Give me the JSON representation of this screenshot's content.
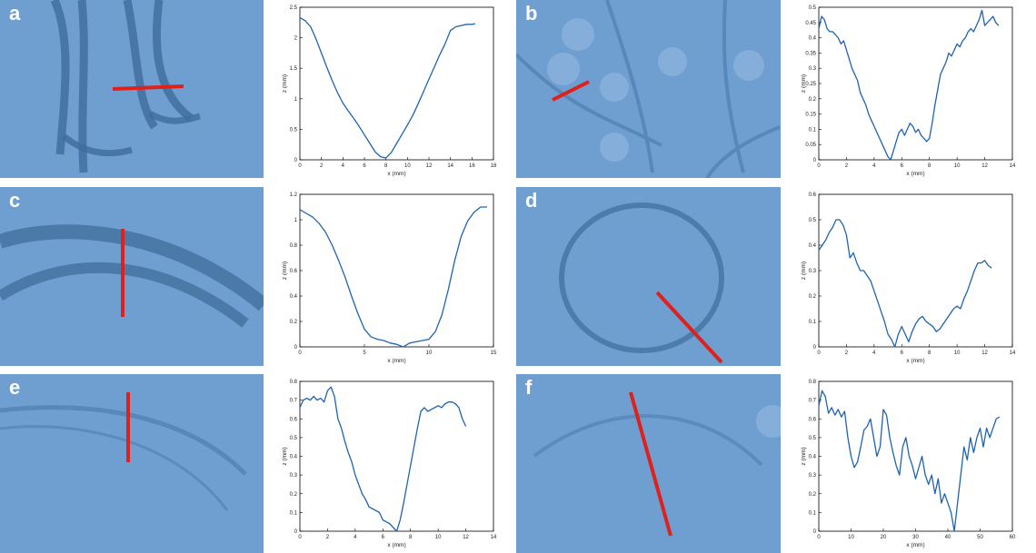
{
  "figure": {
    "panels": [
      {
        "letter": "a",
        "scan_color": "#6f9fd0"
      },
      {
        "letter": "b",
        "scan_color": "#6f9fd0"
      },
      {
        "letter": "c",
        "scan_color": "#6f9fd0"
      },
      {
        "letter": "d",
        "scan_color": "#6f9fd0"
      },
      {
        "letter": "e",
        "scan_color": "#6f9fd0"
      },
      {
        "letter": "f",
        "scan_color": "#6f9fd0"
      }
    ],
    "section_line_color": "#e0201b",
    "profile_line_color": "#1f63b0"
  },
  "chart_data": [
    {
      "type": "line",
      "panel": "a",
      "xlabel": "x (mm)",
      "ylabel": "z (mm)",
      "xlim": [
        0,
        18
      ],
      "ylim": [
        0,
        2.5
      ],
      "xticks": [
        0,
        2,
        4,
        6,
        8,
        10,
        12,
        14,
        16,
        18
      ],
      "yticks": [
        0,
        0.5,
        1,
        1.5,
        2,
        2.5
      ],
      "x": [
        0,
        0.5,
        1,
        1.5,
        2,
        2.5,
        3,
        3.5,
        4,
        4.5,
        5,
        5.5,
        6,
        6.5,
        7,
        7.5,
        8,
        8.5,
        9,
        9.5,
        10,
        10.5,
        11,
        11.5,
        12,
        12.5,
        13,
        13.5,
        14,
        14.5,
        15,
        15.5,
        16,
        16.3
      ],
      "y": [
        2.33,
        2.28,
        2.18,
        1.98,
        1.75,
        1.52,
        1.3,
        1.1,
        0.93,
        0.8,
        0.68,
        0.55,
        0.41,
        0.27,
        0.13,
        0.05,
        0.03,
        0.12,
        0.27,
        0.42,
        0.57,
        0.73,
        0.92,
        1.12,
        1.32,
        1.52,
        1.72,
        1.9,
        2.12,
        2.18,
        2.2,
        2.22,
        2.22,
        2.23
      ]
    },
    {
      "type": "line",
      "panel": "b",
      "xlabel": "x (mm)",
      "ylabel": "z (mm)",
      "xlim": [
        0,
        14
      ],
      "ylim": [
        0,
        0.5
      ],
      "xticks": [
        0,
        2,
        4,
        6,
        8,
        10,
        12,
        14
      ],
      "yticks": [
        0,
        0.05,
        0.1,
        0.15,
        0.2,
        0.25,
        0.3,
        0.35,
        0.4,
        0.45,
        0.5
      ],
      "x": [
        0,
        0.2,
        0.4,
        0.6,
        0.8,
        1.0,
        1.2,
        1.4,
        1.6,
        1.8,
        2.0,
        2.2,
        2.4,
        2.6,
        2.8,
        3.0,
        3.2,
        3.4,
        3.6,
        3.8,
        4.0,
        4.2,
        4.4,
        4.6,
        4.8,
        5.0,
        5.2,
        5.4,
        5.6,
        5.8,
        6.0,
        6.2,
        6.4,
        6.6,
        6.8,
        7.0,
        7.2,
        7.4,
        7.6,
        7.8,
        8.0,
        8.2,
        8.4,
        8.6,
        8.8,
        9.0,
        9.2,
        9.4,
        9.6,
        9.8,
        10.0,
        10.2,
        10.4,
        10.6,
        10.8,
        11.0,
        11.2,
        11.4,
        11.6,
        11.8,
        12.0,
        12.2,
        12.4,
        12.6,
        12.8,
        13.0
      ],
      "y": [
        0.43,
        0.47,
        0.46,
        0.43,
        0.42,
        0.42,
        0.41,
        0.4,
        0.38,
        0.39,
        0.36,
        0.33,
        0.3,
        0.28,
        0.26,
        0.22,
        0.2,
        0.18,
        0.15,
        0.13,
        0.11,
        0.09,
        0.07,
        0.05,
        0.03,
        0.01,
        0.0,
        0.03,
        0.06,
        0.09,
        0.1,
        0.08,
        0.1,
        0.12,
        0.11,
        0.09,
        0.1,
        0.08,
        0.07,
        0.06,
        0.07,
        0.12,
        0.18,
        0.23,
        0.28,
        0.3,
        0.32,
        0.35,
        0.34,
        0.36,
        0.38,
        0.37,
        0.39,
        0.4,
        0.42,
        0.43,
        0.42,
        0.44,
        0.46,
        0.49,
        0.44,
        0.45,
        0.46,
        0.47,
        0.45,
        0.44
      ]
    },
    {
      "type": "line",
      "panel": "c",
      "xlabel": "x (mm)",
      "ylabel": "z (mm)",
      "xlim": [
        0,
        15
      ],
      "ylim": [
        0,
        1.2
      ],
      "xticks": [
        0,
        5,
        10,
        15
      ],
      "yticks": [
        0,
        0.2,
        0.4,
        0.6,
        0.8,
        1,
        1.2
      ],
      "x": [
        0,
        0.5,
        1,
        1.5,
        2,
        2.5,
        3,
        3.5,
        4,
        4.5,
        5,
        5.5,
        6,
        6.5,
        7,
        7.5,
        8,
        8.5,
        9,
        9.5,
        10,
        10.5,
        11,
        11.5,
        12,
        12.5,
        13,
        13.5,
        14,
        14.5
      ],
      "y": [
        1.08,
        1.05,
        1.02,
        0.97,
        0.9,
        0.8,
        0.68,
        0.55,
        0.4,
        0.26,
        0.14,
        0.08,
        0.06,
        0.05,
        0.03,
        0.02,
        0.0,
        0.03,
        0.04,
        0.05,
        0.06,
        0.12,
        0.25,
        0.45,
        0.68,
        0.87,
        0.99,
        1.06,
        1.1,
        1.1
      ]
    },
    {
      "type": "line",
      "panel": "d",
      "xlabel": "x (mm)",
      "ylabel": "z (mm)",
      "xlim": [
        0,
        14
      ],
      "ylim": [
        0,
        0.6
      ],
      "xticks": [
        0,
        2,
        4,
        6,
        8,
        10,
        12,
        14
      ],
      "yticks": [
        0,
        0.1,
        0.2,
        0.3,
        0.4,
        0.5,
        0.6
      ],
      "x": [
        0,
        0.25,
        0.5,
        0.75,
        1.0,
        1.25,
        1.5,
        1.75,
        2.0,
        2.25,
        2.5,
        2.75,
        3.0,
        3.25,
        3.5,
        3.75,
        4.0,
        4.25,
        4.5,
        4.75,
        5.0,
        5.25,
        5.5,
        5.75,
        6.0,
        6.25,
        6.5,
        6.75,
        7.0,
        7.25,
        7.5,
        7.75,
        8.0,
        8.25,
        8.5,
        8.75,
        9.0,
        9.25,
        9.5,
        9.75,
        10.0,
        10.25,
        10.5,
        10.75,
        11.0,
        11.25,
        11.5,
        11.75,
        12.0,
        12.25,
        12.5
      ],
      "y": [
        0.38,
        0.4,
        0.42,
        0.45,
        0.47,
        0.5,
        0.5,
        0.48,
        0.44,
        0.35,
        0.37,
        0.33,
        0.3,
        0.3,
        0.28,
        0.26,
        0.22,
        0.18,
        0.14,
        0.1,
        0.05,
        0.03,
        0.0,
        0.05,
        0.08,
        0.05,
        0.02,
        0.06,
        0.09,
        0.11,
        0.12,
        0.1,
        0.09,
        0.08,
        0.06,
        0.07,
        0.09,
        0.11,
        0.13,
        0.15,
        0.16,
        0.15,
        0.19,
        0.22,
        0.26,
        0.3,
        0.33,
        0.33,
        0.34,
        0.32,
        0.31
      ]
    },
    {
      "type": "line",
      "panel": "e",
      "xlabel": "x (mm)",
      "ylabel": "z (mm)",
      "xlim": [
        0,
        14
      ],
      "ylim": [
        0,
        0.8
      ],
      "xticks": [
        0,
        2,
        4,
        6,
        8,
        10,
        12,
        14
      ],
      "yticks": [
        0,
        0.1,
        0.2,
        0.3,
        0.4,
        0.5,
        0.6,
        0.7,
        0.8
      ],
      "x": [
        0,
        0.25,
        0.5,
        0.75,
        1.0,
        1.25,
        1.5,
        1.75,
        2.0,
        2.25,
        2.5,
        2.75,
        3.0,
        3.25,
        3.5,
        3.75,
        4.0,
        4.25,
        4.5,
        4.75,
        5.0,
        5.25,
        5.5,
        5.75,
        6.0,
        6.25,
        6.5,
        6.75,
        7.0,
        7.25,
        7.5,
        7.75,
        8.0,
        8.25,
        8.5,
        8.75,
        9.0,
        9.25,
        9.5,
        9.75,
        10.0,
        10.25,
        10.5,
        10.75,
        11.0,
        11.25,
        11.5,
        11.75,
        12.0
      ],
      "y": [
        0.66,
        0.7,
        0.71,
        0.7,
        0.72,
        0.7,
        0.71,
        0.69,
        0.75,
        0.77,
        0.72,
        0.6,
        0.55,
        0.48,
        0.42,
        0.37,
        0.3,
        0.25,
        0.2,
        0.17,
        0.13,
        0.12,
        0.11,
        0.1,
        0.06,
        0.05,
        0.04,
        0.02,
        0.0,
        0.06,
        0.15,
        0.25,
        0.35,
        0.45,
        0.55,
        0.64,
        0.66,
        0.64,
        0.65,
        0.66,
        0.67,
        0.66,
        0.68,
        0.69,
        0.69,
        0.68,
        0.66,
        0.6,
        0.56
      ]
    },
    {
      "type": "line",
      "panel": "f",
      "xlabel": "x (mm)",
      "ylabel": "z (mm)",
      "xlim": [
        0,
        60
      ],
      "ylim": [
        0,
        0.8
      ],
      "xticks": [
        0,
        10,
        20,
        30,
        40,
        50,
        60
      ],
      "yticks": [
        0,
        0.1,
        0.2,
        0.3,
        0.4,
        0.5,
        0.6,
        0.7,
        0.8
      ],
      "x": [
        0,
        1,
        2,
        3,
        4,
        5,
        6,
        7,
        8,
        9,
        10,
        11,
        12,
        13,
        14,
        15,
        16,
        17,
        18,
        19,
        20,
        21,
        22,
        23,
        24,
        25,
        26,
        27,
        28,
        29,
        30,
        31,
        32,
        33,
        34,
        35,
        36,
        37,
        38,
        39,
        40,
        41,
        42,
        43,
        44,
        45,
        46,
        47,
        48,
        49,
        50,
        51,
        52,
        53,
        54,
        55,
        56
      ],
      "y": [
        0.67,
        0.75,
        0.72,
        0.63,
        0.66,
        0.62,
        0.65,
        0.61,
        0.64,
        0.5,
        0.4,
        0.34,
        0.37,
        0.45,
        0.54,
        0.56,
        0.6,
        0.5,
        0.4,
        0.45,
        0.65,
        0.62,
        0.5,
        0.42,
        0.35,
        0.3,
        0.45,
        0.5,
        0.4,
        0.35,
        0.28,
        0.34,
        0.4,
        0.3,
        0.25,
        0.3,
        0.2,
        0.28,
        0.15,
        0.2,
        0.15,
        0.1,
        0.0,
        0.15,
        0.3,
        0.45,
        0.38,
        0.5,
        0.42,
        0.5,
        0.55,
        0.45,
        0.55,
        0.5,
        0.55,
        0.6,
        0.61
      ]
    }
  ]
}
